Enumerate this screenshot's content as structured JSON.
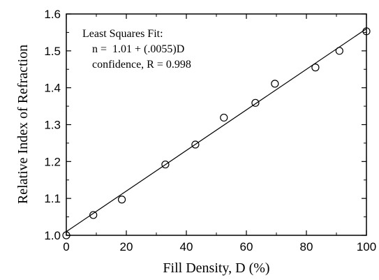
{
  "chart_data": {
    "type": "scatter",
    "xlabel": "Fill Density, D (%)",
    "ylabel": "Relative Index of Refraction",
    "xlim": [
      0,
      100
    ],
    "ylim": [
      1.0,
      1.6
    ],
    "x_ticks": [
      0,
      20,
      40,
      60,
      80,
      100
    ],
    "x_tick_labels": [
      "0",
      "20",
      "40",
      "60",
      "80",
      "100"
    ],
    "y_ticks": [
      1.0,
      1.1,
      1.2,
      1.3,
      1.4,
      1.5,
      1.6
    ],
    "y_tick_labels": [
      "1.0",
      "1.1",
      "1.2",
      "1.3",
      "1.4",
      "1.5",
      "1.6"
    ],
    "grid": false,
    "series": [
      {
        "marker": "open-circle",
        "points": [
          {
            "x": 0,
            "y": 1.0
          },
          {
            "x": 9,
            "y": 1.055
          },
          {
            "x": 18.5,
            "y": 1.097
          },
          {
            "x": 33,
            "y": 1.192
          },
          {
            "x": 43,
            "y": 1.246
          },
          {
            "x": 52.5,
            "y": 1.319
          },
          {
            "x": 63,
            "y": 1.359
          },
          {
            "x": 69.5,
            "y": 1.411
          },
          {
            "x": 83,
            "y": 1.455
          },
          {
            "x": 91,
            "y": 1.5
          },
          {
            "x": 100,
            "y": 1.553
          }
        ]
      }
    ],
    "fit_line": {
      "intercept": 1.01,
      "slope": 0.0055
    },
    "annotation": {
      "line1": "Least Squares Fit:",
      "line2": "n =  1.01 + (.0055)D",
      "line3": "confidence, R = 0.998"
    }
  }
}
